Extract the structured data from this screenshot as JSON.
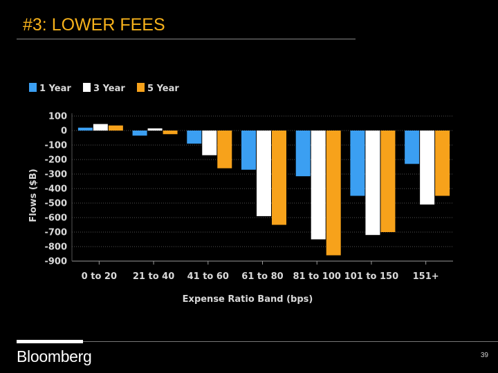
{
  "slide": {
    "title": "#3: LOWER FEES",
    "logo_text": "Bloomberg",
    "page_number": "39"
  },
  "colors": {
    "title": "#f7b21b",
    "1 Year": "#3b9ff2",
    "3 Year": "#ffffff",
    "5 Year": "#f7a21b",
    "axis_text": "#d9d9d9"
  },
  "chart_data": {
    "type": "bar",
    "title": "",
    "xlabel": "Expense Ratio Band (bps)",
    "ylabel": "Flows ($B)",
    "ylim": [
      -900,
      100
    ],
    "yticks": [
      100,
      0,
      -100,
      -200,
      -300,
      -400,
      -500,
      -600,
      -700,
      -800,
      -900
    ],
    "ytick_labels": [
      "100",
      "0",
      "-100",
      "-200",
      "-300",
      "-400",
      "-500",
      "-600",
      "-700",
      "-800",
      "-900"
    ],
    "grid": true,
    "legend_position": "top-left",
    "categories": [
      "0 to 20",
      "21 to 40",
      "41 to 60",
      "61 to 80",
      "81 to 100",
      "101 to 150",
      "151+"
    ],
    "series": [
      {
        "name": "1 Year",
        "values": [
          20,
          -35,
          -90,
          -270,
          -315,
          -450,
          -230
        ]
      },
      {
        "name": "3 Year",
        "values": [
          45,
          15,
          -170,
          -590,
          -750,
          -720,
          -510
        ]
      },
      {
        "name": "5 Year",
        "values": [
          35,
          -25,
          -260,
          -650,
          -860,
          -700,
          -450
        ]
      }
    ]
  }
}
